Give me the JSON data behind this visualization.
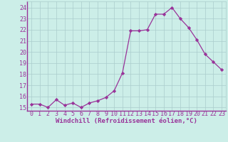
{
  "x": [
    0,
    1,
    2,
    3,
    4,
    5,
    6,
    7,
    8,
    9,
    10,
    11,
    12,
    13,
    14,
    15,
    16,
    17,
    18,
    19,
    20,
    21,
    22,
    23
  ],
  "y": [
    15.3,
    15.3,
    15.0,
    15.7,
    15.2,
    15.4,
    15.0,
    15.4,
    15.6,
    15.9,
    16.5,
    18.1,
    21.9,
    21.9,
    22.0,
    23.4,
    23.4,
    24.0,
    23.0,
    22.2,
    21.1,
    19.8,
    19.1,
    18.4
  ],
  "line_color": "#993399",
  "marker": "D",
  "marker_size": 2.2,
  "bg_color": "#cceee8",
  "grid_color": "#aacccc",
  "spine_color": "#993399",
  "xlabel": "Windchill (Refroidissement éolien,°C)",
  "yticks": [
    15,
    16,
    17,
    18,
    19,
    20,
    21,
    22,
    23,
    24
  ],
  "xtick_labels": [
    "0",
    "1",
    "2",
    "3",
    "4",
    "5",
    "6",
    "7",
    "8",
    "9",
    "10",
    "11",
    "12",
    "13",
    "14",
    "15",
    "16",
    "17",
    "18",
    "19",
    "20",
    "21",
    "22",
    "23"
  ],
  "xticks": [
    0,
    1,
    2,
    3,
    4,
    5,
    6,
    7,
    8,
    9,
    10,
    11,
    12,
    13,
    14,
    15,
    16,
    17,
    18,
    19,
    20,
    21,
    22,
    23
  ],
  "ylim": [
    14.7,
    24.55
  ],
  "xlim": [
    -0.5,
    23.5
  ],
  "label_fontsize": 6.5,
  "tick_fontsize": 6.0
}
